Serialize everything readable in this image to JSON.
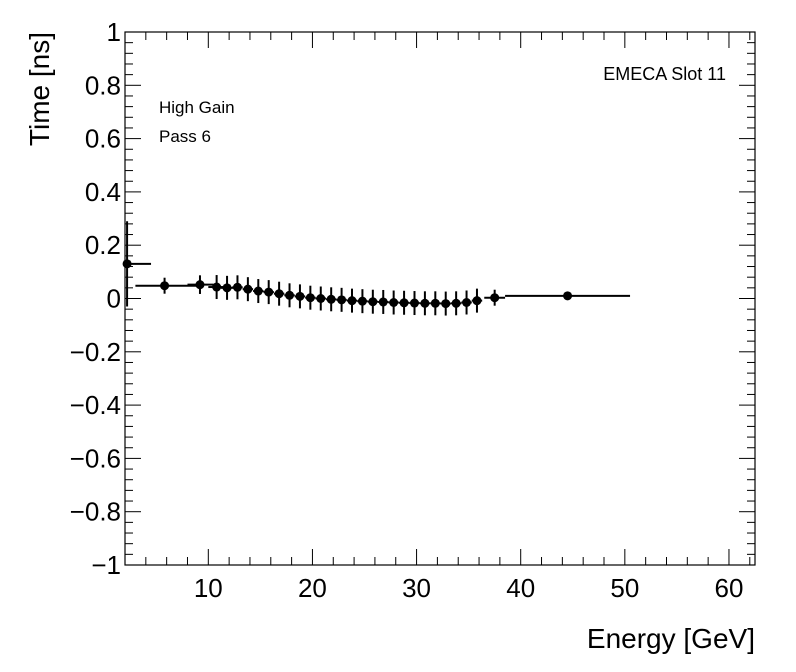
{
  "chart_data": {
    "type": "scatter",
    "title": "",
    "xlabel": "Energy [GeV]",
    "ylabel": "Time [ns]",
    "xlim": [
      2,
      62.5
    ],
    "ylim": [
      -1,
      1
    ],
    "grid": false,
    "x_tick_labels": [
      "10",
      "20",
      "30",
      "40",
      "50",
      "60"
    ],
    "y_tick_labels": [
      "−1",
      "−0.8",
      "−0.6",
      "−0.4",
      "−0.2",
      "0",
      "0.2",
      "0.4",
      "0.6",
      "0.8",
      "1"
    ],
    "annotations": {
      "top_right": "EMECA Slot 11",
      "line1": "High Gain",
      "line2": "Pass 6"
    },
    "series": [
      {
        "name": "EMECA Slot 11",
        "points": [
          {
            "x": 2.2,
            "y": 0.13,
            "xlo": 2.0,
            "xhi": 4.5,
            "err": 0.16
          },
          {
            "x": 5.8,
            "y": 0.048,
            "xlo": 3.0,
            "xhi": 9.0,
            "err": 0.03
          },
          {
            "x": 9.2,
            "y": 0.052,
            "xlo": 8.0,
            "xhi": 10.5,
            "err": 0.035
          },
          {
            "x": 10.8,
            "y": 0.043,
            "xlo": 10.0,
            "xhi": 11.5,
            "err": 0.045
          },
          {
            "x": 11.8,
            "y": 0.04,
            "xlo": 11.2,
            "xhi": 12.5,
            "err": 0.045
          },
          {
            "x": 12.8,
            "y": 0.042,
            "xlo": 12.3,
            "xhi": 13.3,
            "err": 0.045
          },
          {
            "x": 13.8,
            "y": 0.035,
            "xlo": 13.3,
            "xhi": 14.3,
            "err": 0.045
          },
          {
            "x": 14.8,
            "y": 0.028,
            "xlo": 14.3,
            "xhi": 15.3,
            "err": 0.045
          },
          {
            "x": 15.8,
            "y": 0.024,
            "xlo": 15.3,
            "xhi": 16.3,
            "err": 0.045
          },
          {
            "x": 16.8,
            "y": 0.018,
            "xlo": 16.3,
            "xhi": 17.3,
            "err": 0.045
          },
          {
            "x": 17.8,
            "y": 0.012,
            "xlo": 17.3,
            "xhi": 18.3,
            "err": 0.045
          },
          {
            "x": 18.8,
            "y": 0.008,
            "xlo": 18.3,
            "xhi": 19.3,
            "err": 0.045
          },
          {
            "x": 19.8,
            "y": 0.003,
            "xlo": 19.3,
            "xhi": 20.3,
            "err": 0.045
          },
          {
            "x": 20.8,
            "y": 0.0,
            "xlo": 20.3,
            "xhi": 21.3,
            "err": 0.045
          },
          {
            "x": 21.8,
            "y": -0.003,
            "xlo": 21.3,
            "xhi": 22.3,
            "err": 0.045
          },
          {
            "x": 22.8,
            "y": -0.005,
            "xlo": 22.3,
            "xhi": 23.3,
            "err": 0.045
          },
          {
            "x": 23.8,
            "y": -0.008,
            "xlo": 23.3,
            "xhi": 24.3,
            "err": 0.045
          },
          {
            "x": 24.8,
            "y": -0.01,
            "xlo": 24.3,
            "xhi": 25.3,
            "err": 0.045
          },
          {
            "x": 25.8,
            "y": -0.012,
            "xlo": 25.3,
            "xhi": 26.3,
            "err": 0.045
          },
          {
            "x": 26.8,
            "y": -0.013,
            "xlo": 26.3,
            "xhi": 27.3,
            "err": 0.045
          },
          {
            "x": 27.8,
            "y": -0.015,
            "xlo": 27.3,
            "xhi": 28.3,
            "err": 0.045
          },
          {
            "x": 28.8,
            "y": -0.016,
            "xlo": 28.3,
            "xhi": 29.3,
            "err": 0.045
          },
          {
            "x": 29.8,
            "y": -0.017,
            "xlo": 29.3,
            "xhi": 30.3,
            "err": 0.045
          },
          {
            "x": 30.8,
            "y": -0.018,
            "xlo": 30.3,
            "xhi": 31.3,
            "err": 0.045
          },
          {
            "x": 31.8,
            "y": -0.018,
            "xlo": 31.3,
            "xhi": 32.3,
            "err": 0.045
          },
          {
            "x": 32.8,
            "y": -0.019,
            "xlo": 32.3,
            "xhi": 33.3,
            "err": 0.045
          },
          {
            "x": 33.8,
            "y": -0.018,
            "xlo": 33.3,
            "xhi": 34.3,
            "err": 0.045
          },
          {
            "x": 34.8,
            "y": -0.015,
            "xlo": 34.3,
            "xhi": 35.3,
            "err": 0.045
          },
          {
            "x": 35.8,
            "y": -0.008,
            "xlo": 35.3,
            "xhi": 36.3,
            "err": 0.045
          },
          {
            "x": 37.5,
            "y": 0.003,
            "xlo": 36.5,
            "xhi": 38.5,
            "err": 0.03
          },
          {
            "x": 44.5,
            "y": 0.01,
            "xlo": 38.5,
            "xhi": 50.5,
            "err": 0.015
          }
        ]
      }
    ]
  }
}
